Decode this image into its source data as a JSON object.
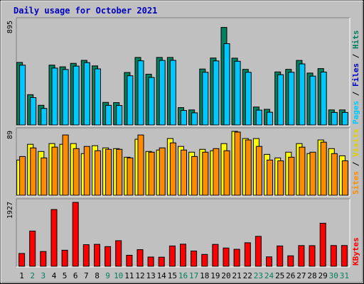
{
  "chart_data": {
    "type": "bar",
    "title": "Daily usage for October 2021",
    "categories": [
      "1",
      "2",
      "3",
      "4",
      "5",
      "6",
      "7",
      "8",
      "9",
      "10",
      "11",
      "12",
      "13",
      "14",
      "15",
      "16",
      "17",
      "18",
      "19",
      "20",
      "21",
      "22",
      "23",
      "24",
      "25",
      "26",
      "27",
      "28",
      "29",
      "30",
      "31"
    ],
    "weekend_days": [
      "2",
      "3",
      "9",
      "10",
      "16",
      "17",
      "23",
      "24",
      "30",
      "31"
    ],
    "panels": [
      {
        "id": "top",
        "ymax_label": "895",
        "ylim": [
          0,
          895
        ],
        "side_label_parts": [
          "Pages",
          "Files",
          "Hits"
        ],
        "series": [
          {
            "name": "Hits",
            "color": "#00805c",
            "values": [
              540,
              262,
              170,
              517,
              502,
              532,
              558,
              510,
              195,
              193,
              453,
              583,
              438,
              583,
              583,
              150,
              130,
              483,
              578,
              842,
              577,
              480,
              155,
              135,
              458,
              480,
              557,
              448,
              487,
              130,
              130
            ]
          },
          {
            "name": "Pages",
            "color": "#00c8ff",
            "values": [
              516,
              236,
              143,
              491,
              479,
              508,
              538,
              484,
              169,
              168,
              425,
              554,
              410,
              557,
              558,
              125,
              105,
              455,
              553,
              702,
              550,
              455,
              128,
              110,
              434,
              455,
              527,
              422,
              457,
              108,
              108
            ]
          }
        ]
      },
      {
        "id": "mid",
        "ymax_label": "89",
        "ylim": [
          0,
          89
        ],
        "side_label_parts": [
          "Sites",
          "Visits"
        ],
        "series": [
          {
            "name": "Visits",
            "color": "#ffff00",
            "values": [
              49,
              71,
              61,
              72,
              71,
              72,
              58,
              69,
              66,
              65,
              53,
              78,
              61,
              63,
              79,
              68,
              60,
              64,
              62,
              72,
              89,
              79,
              79,
              57,
              52,
              60,
              72,
              58,
              77,
              65,
              55
            ]
          },
          {
            "name": "Sites",
            "color": "#ff8c00",
            "values": [
              54,
              66,
              52,
              67,
              84,
              65,
              68,
              62,
              64,
              64,
              52,
              84,
              60,
              66,
              73,
              63,
              54,
              60,
              65,
              62,
              88,
              77,
              68,
              49,
              48,
              53,
              67,
              60,
              74,
              58,
              48
            ]
          }
        ]
      },
      {
        "id": "bot",
        "ymax_label": "1927",
        "ylim": [
          0,
          1927
        ],
        "side_label_parts": [
          "KBytes"
        ],
        "series": [
          {
            "name": "KBytes",
            "color": "#ff0000",
            "values": [
              385,
              1063,
              446,
              1710,
              483,
              1927,
              651,
              662,
              594,
              771,
              332,
              502,
              279,
              273,
              612,
              666,
              460,
              358,
              660,
              551,
              512,
              708,
              902,
              282,
              612,
              315,
              624,
              621,
              1298,
              626,
              626
            ]
          }
        ]
      }
    ]
  }
}
